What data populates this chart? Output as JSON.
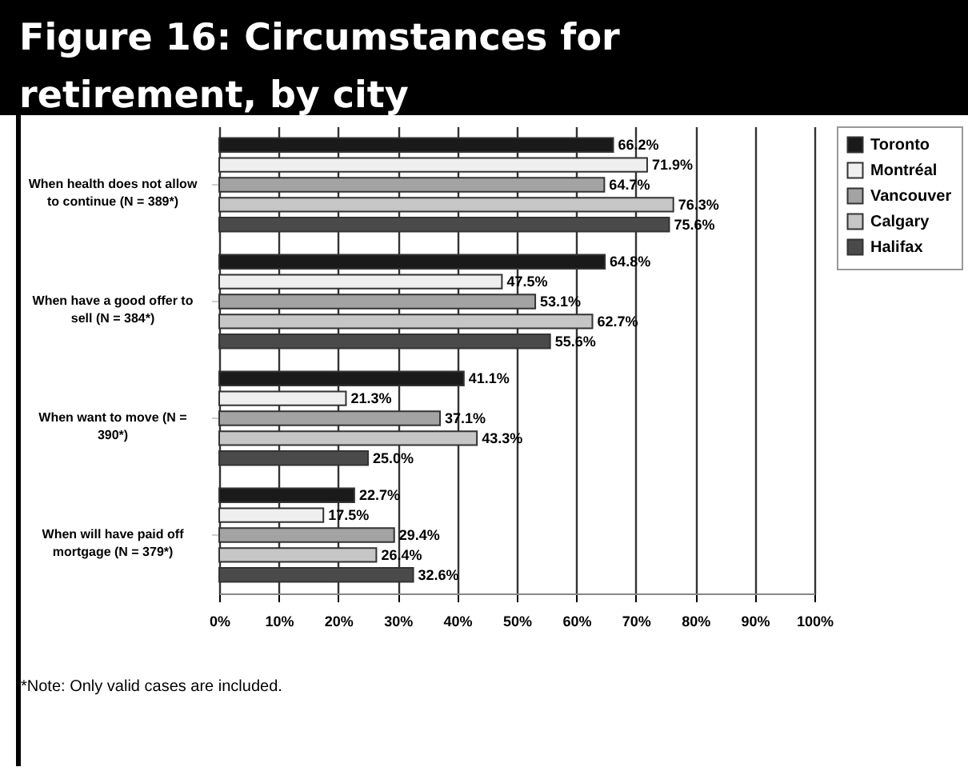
{
  "chart_data": {
    "type": "bar",
    "orientation": "horizontal",
    "title": "Figure 16: Circumstances for retirement, by city",
    "categories": [
      "When health does not allow to continue (N = 389*)",
      "When have a good offer to sell (N = 384*)",
      "When want to move (N = 390*)",
      "When will have paid off mortgage (N = 379*)"
    ],
    "series": [
      {
        "name": "Toronto",
        "color": "#1a1a1a",
        "values": [
          66.2,
          64.8,
          41.1,
          22.7
        ],
        "value_labels": [
          "66.2%",
          "64.8%",
          "41.1%",
          "22.7%"
        ]
      },
      {
        "name": "Montréal",
        "color": "#efefef",
        "values": [
          71.9,
          47.5,
          21.3,
          17.5
        ],
        "value_labels": [
          "71.9%",
          "47.5%",
          "21.3%",
          "17.5%"
        ]
      },
      {
        "name": "Vancouver",
        "color": "#a3a3a3",
        "values": [
          64.7,
          53.1,
          37.1,
          29.4
        ],
        "value_labels": [
          "64.7%",
          "53.1%",
          "37.1%",
          "29.4%"
        ]
      },
      {
        "name": "Calgary",
        "color": "#c6c6c6",
        "values": [
          76.3,
          62.7,
          43.3,
          26.4
        ],
        "value_labels": [
          "76.3%",
          "62.7%",
          "43.3%",
          "26.4%"
        ]
      },
      {
        "name": "Halifax",
        "color": "#4a4a4a",
        "values": [
          75.6,
          55.6,
          25.0,
          32.6
        ],
        "value_labels": [
          "75.6%",
          "55.6%",
          "25.0%",
          "32.6%"
        ]
      }
    ],
    "xlim": [
      0,
      100
    ],
    "xticks": [
      {
        "value": 0,
        "label": "0%"
      },
      {
        "value": 10,
        "label": "10%"
      },
      {
        "value": 20,
        "label": "20%"
      },
      {
        "value": 30,
        "label": "30%"
      },
      {
        "value": 40,
        "label": "40%"
      },
      {
        "value": 50,
        "label": "50%"
      },
      {
        "value": 60,
        "label": "60%"
      },
      {
        "value": 70,
        "label": "70%"
      },
      {
        "value": 80,
        "label": "80%"
      },
      {
        "value": 90,
        "label": "90%"
      },
      {
        "value": 100,
        "label": "100%"
      }
    ],
    "grid": "x",
    "legend": "top right",
    "annotations": [
      "*Note: Only valid cases are included."
    ]
  }
}
